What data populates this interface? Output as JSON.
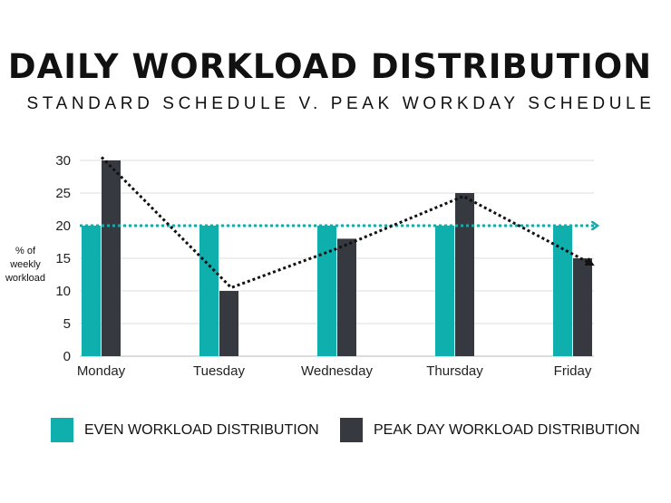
{
  "title": "DAILY WORKLOAD DISTRIBUTION",
  "subtitle": "STANDARD SCHEDULE V. PEAK WORKDAY SCHEDULE",
  "colors": {
    "even": "#0fafae",
    "peak": "#363a40",
    "reference_line": "#1aa8a8",
    "trend_line": "#111111",
    "grid": "#dddddd"
  },
  "chart_data": {
    "type": "bar",
    "title": "DAILY WORKLOAD DISTRIBUTION",
    "subtitle": "STANDARD SCHEDULE V. PEAK WORKDAY SCHEDULE",
    "ylabel": "% of weekly workload",
    "ylabel_lines": [
      "% of",
      "weekly",
      "workload"
    ],
    "xlabel": "",
    "categories": [
      "Monday",
      "Tuesday",
      "Wednesday",
      "Thursday",
      "Friday"
    ],
    "ylim": [
      0,
      30
    ],
    "yticks": [
      0,
      5,
      10,
      15,
      20,
      25,
      30
    ],
    "grid": true,
    "legend_position": "bottom",
    "series": [
      {
        "name": "EVEN WORKLOAD DISTRIBUTION",
        "values": [
          20,
          20,
          20,
          20,
          20
        ]
      },
      {
        "name": "PEAK DAY WORKLOAD DISTRIBUTION",
        "values": [
          30,
          10,
          18,
          25,
          15
        ]
      }
    ],
    "reference_line": {
      "value": 20,
      "style": "dotted-arrow"
    },
    "trend_line": {
      "values": [
        30.5,
        10.5,
        16.5,
        24.5,
        14
      ],
      "style": "dotted-arrow"
    }
  }
}
